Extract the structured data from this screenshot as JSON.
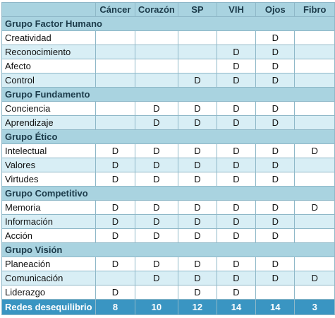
{
  "columns": [
    "Cáncer",
    "Corazón",
    "SP",
    "VIH",
    "Ojos",
    "Fibro"
  ],
  "groups": [
    {
      "title": "Grupo Factor Humano",
      "rows": [
        {
          "label": "Creatividad",
          "cells": [
            "",
            "",
            "",
            "",
            "D",
            ""
          ]
        },
        {
          "label": "Reconocimiento",
          "cells": [
            "",
            "",
            "",
            "D",
            "D",
            ""
          ]
        },
        {
          "label": "Afecto",
          "cells": [
            "",
            "",
            "",
            "D",
            "D",
            ""
          ]
        },
        {
          "label": "Control",
          "cells": [
            "",
            "",
            "D",
            "D",
            "D",
            ""
          ]
        }
      ]
    },
    {
      "title": "Grupo Fundamento",
      "rows": [
        {
          "label": "Conciencia",
          "cells": [
            "",
            "D",
            "D",
            "D",
            "D",
            ""
          ]
        },
        {
          "label": "Aprendizaje",
          "cells": [
            "",
            "D",
            "D",
            "D",
            "D",
            ""
          ]
        }
      ]
    },
    {
      "title": "Grupo Ético",
      "rows": [
        {
          "label": "Intelectual",
          "cells": [
            "D",
            "D",
            "D",
            "D",
            "D",
            "D"
          ]
        },
        {
          "label": "Valores",
          "cells": [
            "D",
            "D",
            "D",
            "D",
            "D",
            ""
          ]
        },
        {
          "label": "Virtudes",
          "cells": [
            "D",
            "D",
            "D",
            "D",
            "D",
            ""
          ]
        }
      ]
    },
    {
      "title": "Grupo Competitivo",
      "rows": [
        {
          "label": "Memoria",
          "cells": [
            "D",
            "D",
            "D",
            "D",
            "D",
            "D"
          ]
        },
        {
          "label": "Información",
          "cells": [
            "D",
            "D",
            "D",
            "D",
            "D",
            ""
          ]
        },
        {
          "label": "Acción",
          "cells": [
            "D",
            "D",
            "D",
            "D",
            "D",
            ""
          ]
        }
      ]
    },
    {
      "title": "Grupo Visión",
      "rows": [
        {
          "label": "Planeación",
          "cells": [
            "D",
            "D",
            "D",
            "D",
            "D",
            ""
          ]
        },
        {
          "label": "Comunicación",
          "cells": [
            "",
            "D",
            "D",
            "D",
            "D",
            "D"
          ]
        },
        {
          "label": "Liderazgo",
          "cells": [
            "D",
            "",
            "D",
            "D",
            "",
            ""
          ]
        }
      ]
    }
  ],
  "footer": {
    "label": "Redes desequilibrio",
    "values": [
      "8",
      "10",
      "12",
      "14",
      "14",
      "3"
    ]
  }
}
